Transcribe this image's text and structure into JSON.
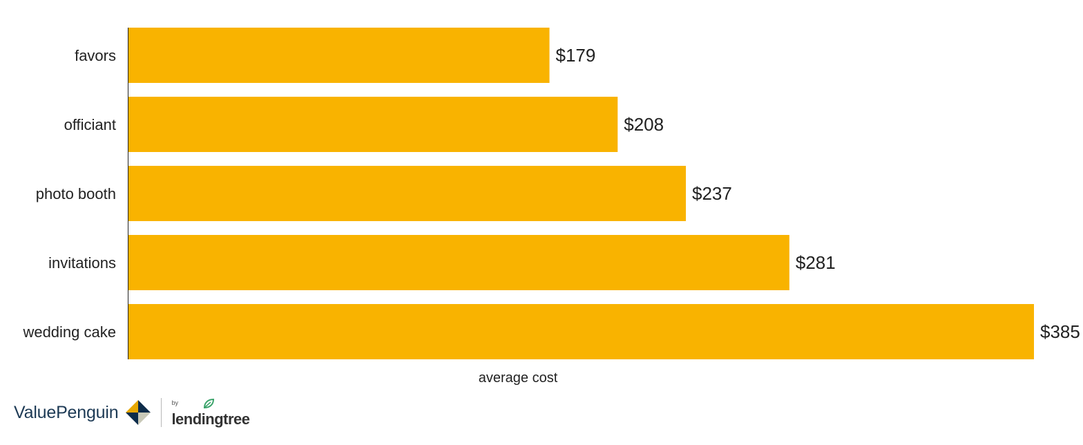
{
  "chart_data": {
    "type": "bar",
    "orientation": "horizontal",
    "categories": [
      "favors",
      "officiant",
      "photo booth",
      "invitations",
      "wedding cake"
    ],
    "values": [
      179,
      208,
      237,
      281,
      385
    ],
    "value_labels": [
      "$179",
      "$208",
      "$237",
      "$281",
      "$385"
    ],
    "xlabel": "average cost",
    "ylabel": "",
    "title": "",
    "xlim": [
      0,
      385
    ],
    "grid": false,
    "legend": "none",
    "bar_color": "#F9B300"
  },
  "branding": {
    "brand": "ValuePenguin",
    "by": "by",
    "partner": "lendingtree",
    "brand_color": "#1d3a55",
    "leaf_color": "#3aa36a"
  }
}
